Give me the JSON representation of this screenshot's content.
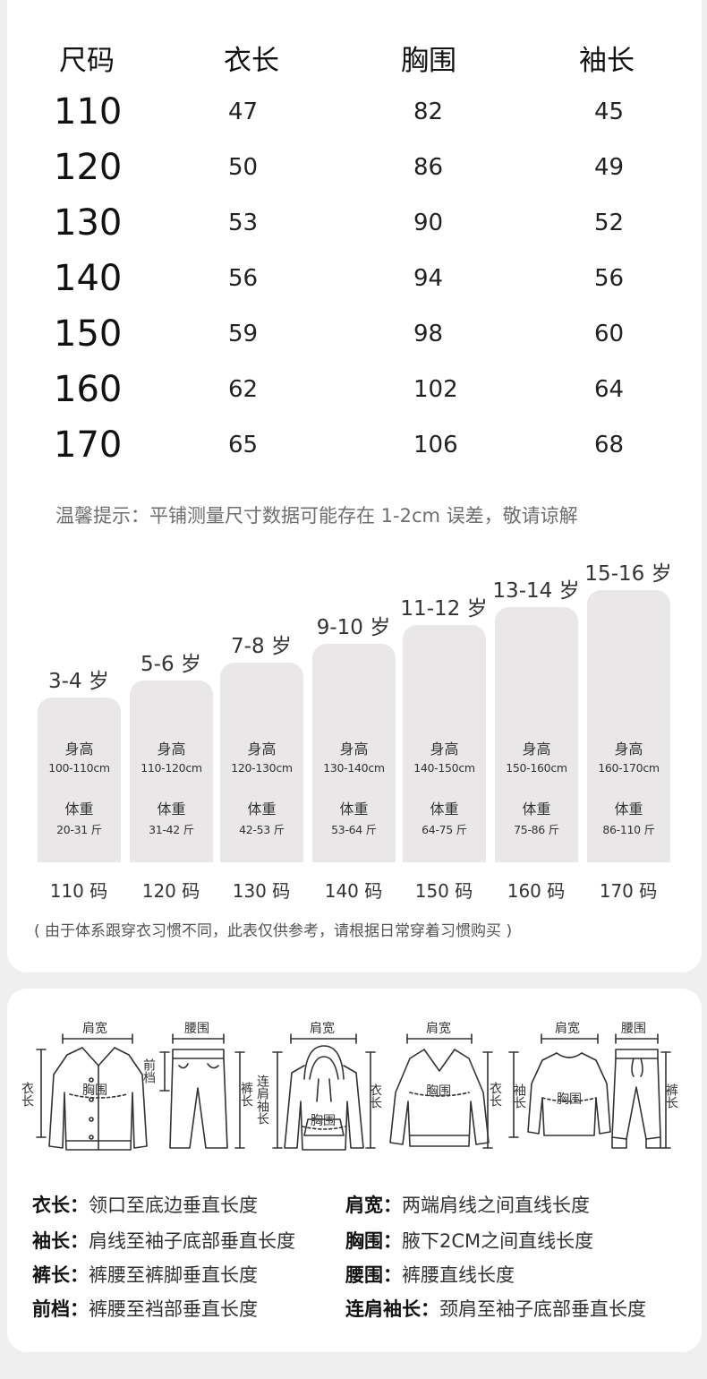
{
  "size_table": {
    "headers": [
      "尺码",
      "衣长",
      "胸围",
      "袖长"
    ],
    "rows": [
      [
        "110",
        "47",
        "82",
        "45"
      ],
      [
        "120",
        "50",
        "86",
        "49"
      ],
      [
        "130",
        "53",
        "90",
        "52"
      ],
      [
        "140",
        "56",
        "94",
        "56"
      ],
      [
        "150",
        "59",
        "98",
        "60"
      ],
      [
        "160",
        "62",
        "102",
        "64"
      ],
      [
        "170",
        "65",
        "106",
        "68"
      ]
    ]
  },
  "tip": "温馨提示：平铺测量尺寸数据可能存在 1-2cm 误差，敬请谅解",
  "age_chart": {
    "height_label": "身高",
    "weight_label": "体重",
    "items": [
      {
        "age": "3-4 岁",
        "height": "100-110cm",
        "weight": "20-31 斤",
        "size": "110 码"
      },
      {
        "age": "5-6 岁",
        "height": "110-120cm",
        "weight": "31-42 斤",
        "size": "120 码"
      },
      {
        "age": "7-8 岁",
        "height": "120-130cm",
        "weight": "42-53 斤",
        "size": "130 码"
      },
      {
        "age": "9-10 岁",
        "height": "130-140cm",
        "weight": "53-64 斤",
        "size": "140 码"
      },
      {
        "age": "11-12 岁",
        "height": "140-150cm",
        "weight": "64-75 斤",
        "size": "150 码"
      },
      {
        "age": "13-14 岁",
        "height": "150-160cm",
        "weight": "75-86 斤",
        "size": "160 码"
      },
      {
        "age": "15-16 岁",
        "height": "160-170cm",
        "weight": "86-110 斤",
        "size": "170 码"
      }
    ],
    "note": "( 由于体系跟穿衣习惯不同，此表仅供参考，请根据日常穿着习惯购买 )"
  },
  "illustration_labels": {
    "shoulder": "肩宽",
    "waist": "腰围",
    "chest": "胸围",
    "front_rise": "前档",
    "pants_length": "裤长",
    "length": "衣长",
    "sleeve": "袖长",
    "raglan_sleeve": "连肩袖长"
  },
  "definitions": [
    {
      "term": "衣长",
      "desc": "领口至底边垂直长度"
    },
    {
      "term": "肩宽",
      "desc": "两端肩线之间直线长度"
    },
    {
      "term": "袖长",
      "desc": "肩线至袖子底部垂直长度"
    },
    {
      "term": "胸围",
      "desc": "腋下2CM之间直线长度"
    },
    {
      "term": "裤长",
      "desc": "裤腰至裤脚垂直长度"
    },
    {
      "term": "腰围",
      "desc": "裤腰直线长度"
    },
    {
      "term": "前档",
      "desc": "裤腰至裆部垂直长度"
    },
    {
      "term": "连肩袖长",
      "desc": "颈肩至袖子底部垂直长度"
    }
  ]
}
